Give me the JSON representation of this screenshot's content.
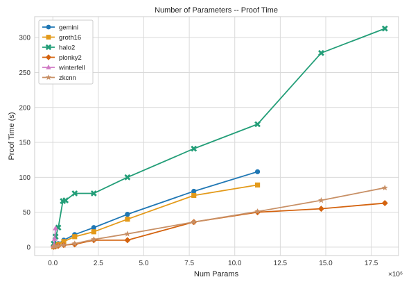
{
  "chart_data": {
    "type": "line",
    "title": "Number of Parameters -- Proof Time",
    "xlabel": "Num Params",
    "ylabel": "Proof Time (s)",
    "x_scale_label": "×10⁶",
    "xlim": [
      -1.0,
      19.0
    ],
    "ylim": [
      -12,
      330
    ],
    "x_tick_labels": [
      "0.0",
      "2.5",
      "5.0",
      "7.5",
      "10.0",
      "12.5",
      "15.0",
      "17.5"
    ],
    "y_tick_labels": [
      "0",
      "50",
      "100",
      "150",
      "200",
      "250",
      "300"
    ],
    "grid": true,
    "legend_position": "top-left",
    "series": [
      {
        "name": "gemini",
        "color": "#1f77b4",
        "marker": "circle",
        "x": [
          0.05,
          0.15,
          0.3,
          0.6,
          1.2,
          2.25,
          4.1,
          7.75,
          11.25
        ],
        "y": [
          1,
          3,
          5,
          10,
          18,
          28,
          47,
          80,
          108
        ]
      },
      {
        "name": "groth16",
        "color": "#e39a1a",
        "marker": "square",
        "x": [
          0.05,
          0.15,
          0.3,
          0.6,
          1.2,
          2.25,
          4.1,
          7.75,
          11.25
        ],
        "y": [
          0.5,
          2,
          4,
          8,
          15,
          22,
          40,
          74,
          89
        ]
      },
      {
        "name": "halo2",
        "color": "#239e78",
        "marker": "x",
        "x": [
          0.05,
          0.15,
          0.3,
          0.55,
          0.7,
          1.2,
          2.25,
          4.1,
          7.75,
          11.25,
          14.75,
          18.25
        ],
        "y": [
          5,
          15,
          28,
          66,
          67,
          77,
          77,
          100,
          141,
          176,
          278,
          313
        ]
      },
      {
        "name": "plonky2",
        "color": "#d4630f",
        "marker": "diamond",
        "x": [
          0.05,
          0.15,
          0.3,
          0.6,
          1.2,
          2.25,
          4.1,
          7.75,
          11.25,
          14.75,
          18.25
        ],
        "y": [
          0.5,
          1,
          2,
          3,
          4,
          10,
          10,
          36,
          50,
          55,
          63
        ]
      },
      {
        "name": "winterfell",
        "color": "#d07ac4",
        "marker": "triangle",
        "x": [
          0.05,
          0.1,
          0.15
        ],
        "y": [
          2,
          12,
          27
        ]
      },
      {
        "name": "zkcnn",
        "color": "#c89066",
        "marker": "star",
        "x": [
          0.05,
          0.15,
          0.3,
          0.6,
          1.2,
          2.25,
          4.1,
          7.75,
          11.25,
          14.75,
          18.25
        ],
        "y": [
          0.5,
          1,
          2,
          3,
          5,
          11,
          19,
          36,
          51,
          67,
          85
        ]
      }
    ]
  }
}
